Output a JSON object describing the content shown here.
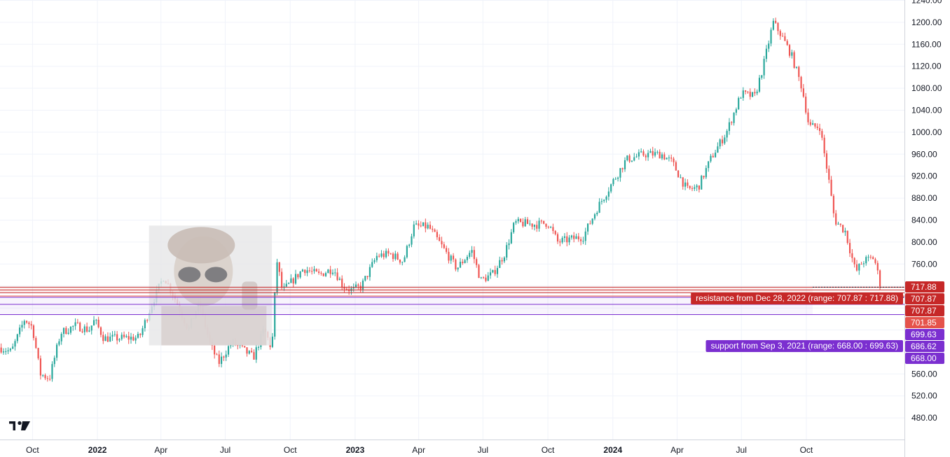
{
  "chart_data": {
    "type": "candlestick",
    "title": "",
    "xlabel": "",
    "ylabel": "",
    "ylim": [
      440,
      1240
    ],
    "x_range": [
      "2021-08-16",
      "2025-02-17"
    ],
    "grid": true,
    "y_ticks": [
      480,
      520,
      560,
      600,
      640,
      680,
      720,
      760,
      800,
      840,
      880,
      920,
      960,
      1000,
      1040,
      1080,
      1120,
      1160,
      1200,
      1240
    ],
    "y_tick_labels": [
      "480.00",
      "520.00",
      "560.00",
      "",
      "",
      "",
      "",
      "760.00",
      "800.00",
      "840.00",
      "880.00",
      "920.00",
      "960.00",
      "1000.00",
      "1040.00",
      "1080.00",
      "1120.00",
      "1160.00",
      "1200.00",
      "1240.00"
    ],
    "x_ticks": [
      {
        "label": "Oct",
        "date": "2021-10-01",
        "year": false
      },
      {
        "label": "2022",
        "date": "2022-01-01",
        "year": true
      },
      {
        "label": "Apr",
        "date": "2022-04-01",
        "year": false
      },
      {
        "label": "Jul",
        "date": "2022-07-01",
        "year": false
      },
      {
        "label": "Oct",
        "date": "2022-10-01",
        "year": false
      },
      {
        "label": "2023",
        "date": "2023-01-01",
        "year": true
      },
      {
        "label": "Apr",
        "date": "2023-04-01",
        "year": false
      },
      {
        "label": "Jul",
        "date": "2023-07-01",
        "year": false
      },
      {
        "label": "Oct",
        "date": "2023-10-01",
        "year": false
      },
      {
        "label": "2024",
        "date": "2024-01-01",
        "year": true
      },
      {
        "label": "Apr",
        "date": "2024-04-01",
        "year": false
      },
      {
        "label": "Jul",
        "date": "2024-07-01",
        "year": false
      },
      {
        "label": "Oct",
        "date": "2024-10-01",
        "year": false
      }
    ],
    "price_path": [
      [
        "2021-08-16",
        608
      ],
      [
        "2021-09-01",
        600
      ],
      [
        "2021-09-20",
        660
      ],
      [
        "2021-10-01",
        645
      ],
      [
        "2021-10-12",
        560
      ],
      [
        "2021-10-25",
        552
      ],
      [
        "2021-11-10",
        635
      ],
      [
        "2021-12-01",
        648
      ],
      [
        "2021-12-20",
        640
      ],
      [
        "2021-12-28",
        658
      ],
      [
        "2022-01-10",
        625
      ],
      [
        "2022-02-01",
        625
      ],
      [
        "2022-03-01",
        626
      ],
      [
        "2022-03-20",
        690
      ],
      [
        "2022-04-05",
        738
      ],
      [
        "2022-04-20",
        700
      ],
      [
        "2022-05-10",
        640
      ],
      [
        "2022-05-25",
        690
      ],
      [
        "2022-06-10",
        612
      ],
      [
        "2022-06-22",
        580
      ],
      [
        "2022-07-10",
        618
      ],
      [
        "2022-07-25",
        605
      ],
      [
        "2022-08-10",
        590
      ],
      [
        "2022-08-25",
        642
      ],
      [
        "2022-09-05",
        605
      ],
      [
        "2022-09-12",
        768
      ],
      [
        "2022-09-20",
        710
      ],
      [
        "2022-10-01",
        725
      ],
      [
        "2022-10-20",
        752
      ],
      [
        "2022-11-10",
        740
      ],
      [
        "2022-12-01",
        752
      ],
      [
        "2022-12-15",
        720
      ],
      [
        "2022-12-28",
        712
      ],
      [
        "2023-01-10",
        720
      ],
      [
        "2023-02-01",
        775
      ],
      [
        "2023-02-20",
        778
      ],
      [
        "2023-03-10",
        765
      ],
      [
        "2023-03-25",
        828
      ],
      [
        "2023-04-15",
        828
      ],
      [
        "2023-05-05",
        790
      ],
      [
        "2023-05-25",
        752
      ],
      [
        "2023-06-15",
        785
      ],
      [
        "2023-06-28",
        730
      ],
      [
        "2023-07-15",
        742
      ],
      [
        "2023-08-01",
        780
      ],
      [
        "2023-08-15",
        835
      ],
      [
        "2023-09-15",
        832
      ],
      [
        "2023-10-01",
        835
      ],
      [
        "2023-10-15",
        800
      ],
      [
        "2023-11-01",
        805
      ],
      [
        "2023-11-20",
        810
      ],
      [
        "2023-12-10",
        862
      ],
      [
        "2024-01-01",
        910
      ],
      [
        "2024-01-20",
        950
      ],
      [
        "2024-02-15",
        960
      ],
      [
        "2024-03-10",
        960
      ],
      [
        "2024-03-25",
        945
      ],
      [
        "2024-04-15",
        895
      ],
      [
        "2024-05-01",
        900
      ],
      [
        "2024-05-20",
        955
      ],
      [
        "2024-06-10",
        1000
      ],
      [
        "2024-07-01",
        1070
      ],
      [
        "2024-07-20",
        1065
      ],
      [
        "2024-08-01",
        1120
      ],
      [
        "2024-08-15",
        1200
      ],
      [
        "2024-08-25",
        1180
      ],
      [
        "2024-09-10",
        1140
      ],
      [
        "2024-09-25",
        1080
      ],
      [
        "2024-10-05",
        1010
      ],
      [
        "2024-10-20",
        1010
      ],
      [
        "2024-11-01",
        920
      ],
      [
        "2024-11-10",
        840
      ],
      [
        "2024-11-25",
        820
      ],
      [
        "2024-12-10",
        745
      ],
      [
        "2024-12-20",
        765
      ],
      [
        "2025-01-05",
        772
      ],
      [
        "2025-01-15",
        716
      ]
    ],
    "resistance_zone": {
      "label": "resistance from Dec 28, 2022 (range: 707.87 : 717.88)",
      "from": 707.87,
      "to": 717.88,
      "color": "#c62828"
    },
    "support_zone": {
      "label": "support from Sep 3, 2021 (range: 668.00 : 699.63)",
      "from": 668.0,
      "to": 699.63,
      "color": "#7b2fd0"
    },
    "extra_red_line": 701.85,
    "mid_purple_line": 686.62,
    "price_labels": [
      {
        "text": "717.88",
        "value": 717.88,
        "color": "#c62828"
      },
      {
        "text": "707.87",
        "value": 707.87,
        "color": "#c62828"
      },
      {
        "text": "707.87",
        "value": 707.87,
        "color": "#c62828"
      },
      {
        "text": "701.85",
        "value": 701.85,
        "color": "#e5534b"
      },
      {
        "text": "699.63",
        "value": 699.63,
        "color": "#7b2fd0"
      },
      {
        "text": "686.62",
        "value": 686.62,
        "color": "#7b2fd0"
      },
      {
        "text": "668.00",
        "value": 668.0,
        "color": "#7b2fd0"
      }
    ],
    "up_color": "#26a69a",
    "down_color": "#ef5350",
    "candle_count": 380
  },
  "branding": {
    "logo_text": "17",
    "logo_icon": "tradingview-logo-icon"
  },
  "overlay_image": {
    "icon": "person-with-sunglasses-photo"
  }
}
